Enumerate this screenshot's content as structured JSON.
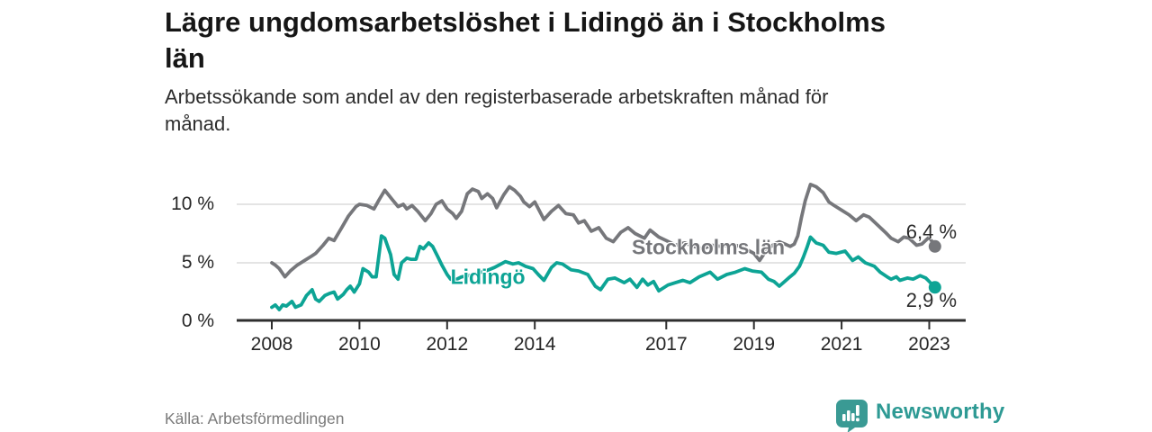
{
  "header": {
    "title_line1": "Lägre ungdomsarbetslöshet i Lidingö än i Stockholms",
    "title_line2": "län",
    "subtitle_line1": "Arbetssökande som andel av den registerbaserade arbetskraften månad för",
    "subtitle_line2": "månad."
  },
  "footer": {
    "source": "Källa: Arbetsförmedlingen",
    "brand": "Newsworthy",
    "brand_color": "#2e9a94"
  },
  "chart_data": {
    "type": "line",
    "title": "Lägre ungdomsarbetslöshet i Lidingö än i Stockholms län",
    "subtitle": "Arbetssökande som andel av den registerbaserade arbetskraften månad för månad.",
    "xlabel": "",
    "ylabel": "",
    "xlim": [
      2008,
      2023.5
    ],
    "ylim": [
      0,
      12
    ],
    "grid": "horizontal",
    "legend_position": "inline-labels",
    "x_tick_labels": [
      "2008",
      "2010",
      "2012",
      "2014",
      "2017",
      "2019",
      "2021",
      "2023"
    ],
    "x_tick_values": [
      2008,
      2010,
      2012,
      2014,
      2017,
      2019,
      2021,
      2023
    ],
    "y_tick_labels": [
      "0 %",
      "5 %",
      "10 %"
    ],
    "y_tick_values": [
      0,
      5,
      10
    ],
    "series": [
      {
        "name": "Stockholms län",
        "color": "#76777b",
        "end_label": "6,4 %",
        "end_value": 6.4,
        "points": [
          [
            2008.0,
            5.0
          ],
          [
            2008.08,
            4.8
          ],
          [
            2008.17,
            4.5
          ],
          [
            2008.3,
            3.8
          ],
          [
            2008.42,
            4.3
          ],
          [
            2008.58,
            4.8
          ],
          [
            2008.75,
            5.2
          ],
          [
            2008.92,
            5.6
          ],
          [
            2009.0,
            5.8
          ],
          [
            2009.17,
            6.5
          ],
          [
            2009.3,
            7.1
          ],
          [
            2009.42,
            6.9
          ],
          [
            2009.58,
            7.9
          ],
          [
            2009.75,
            9.0
          ],
          [
            2009.92,
            9.8
          ],
          [
            2010.0,
            10.0
          ],
          [
            2010.17,
            9.9
          ],
          [
            2010.33,
            9.6
          ],
          [
            2010.45,
            10.4
          ],
          [
            2010.58,
            11.2
          ],
          [
            2010.75,
            10.4
          ],
          [
            2010.88,
            9.8
          ],
          [
            2011.0,
            10.0
          ],
          [
            2011.08,
            9.6
          ],
          [
            2011.2,
            9.9
          ],
          [
            2011.33,
            9.4
          ],
          [
            2011.5,
            8.6
          ],
          [
            2011.63,
            9.2
          ],
          [
            2011.75,
            10.0
          ],
          [
            2011.88,
            10.3
          ],
          [
            2012.0,
            9.6
          ],
          [
            2012.13,
            9.2
          ],
          [
            2012.21,
            8.8
          ],
          [
            2012.33,
            9.4
          ],
          [
            2012.46,
            10.9
          ],
          [
            2012.58,
            11.3
          ],
          [
            2012.71,
            11.1
          ],
          [
            2012.79,
            10.5
          ],
          [
            2012.92,
            10.9
          ],
          [
            2013.04,
            10.5
          ],
          [
            2013.13,
            9.7
          ],
          [
            2013.29,
            10.8
          ],
          [
            2013.42,
            11.5
          ],
          [
            2013.54,
            11.2
          ],
          [
            2013.67,
            10.7
          ],
          [
            2013.75,
            10.2
          ],
          [
            2013.88,
            9.8
          ],
          [
            2014.0,
            10.2
          ],
          [
            2014.21,
            8.7
          ],
          [
            2014.38,
            9.4
          ],
          [
            2014.54,
            9.9
          ],
          [
            2014.71,
            9.2
          ],
          [
            2014.88,
            9.1
          ],
          [
            2015.0,
            8.4
          ],
          [
            2015.13,
            8.6
          ],
          [
            2015.29,
            7.7
          ],
          [
            2015.46,
            8.0
          ],
          [
            2015.63,
            7.1
          ],
          [
            2015.79,
            6.8
          ],
          [
            2015.96,
            7.6
          ],
          [
            2016.13,
            8.0
          ],
          [
            2016.29,
            7.5
          ],
          [
            2016.5,
            7.1
          ],
          [
            2016.63,
            7.8
          ],
          [
            2016.83,
            7.2
          ],
          [
            2017.0,
            6.9
          ],
          [
            2017.21,
            6.5
          ],
          [
            2017.42,
            6.7
          ],
          [
            2017.63,
            6.4
          ],
          [
            2017.83,
            6.2
          ],
          [
            2018.04,
            6.5
          ],
          [
            2018.25,
            6.4
          ],
          [
            2018.5,
            6.6
          ],
          [
            2018.75,
            6.3
          ],
          [
            2019.0,
            5.8
          ],
          [
            2019.13,
            5.2
          ],
          [
            2019.29,
            6.1
          ],
          [
            2019.46,
            6.6
          ],
          [
            2019.58,
            6.8
          ],
          [
            2019.71,
            6.6
          ],
          [
            2019.83,
            6.4
          ],
          [
            2019.92,
            6.6
          ],
          [
            2020.0,
            7.3
          ],
          [
            2020.08,
            8.8
          ],
          [
            2020.17,
            10.3
          ],
          [
            2020.29,
            11.7
          ],
          [
            2020.42,
            11.5
          ],
          [
            2020.58,
            11.0
          ],
          [
            2020.71,
            10.2
          ],
          [
            2020.83,
            9.9
          ],
          [
            2021.0,
            9.5
          ],
          [
            2021.17,
            9.1
          ],
          [
            2021.33,
            8.6
          ],
          [
            2021.5,
            9.1
          ],
          [
            2021.63,
            8.9
          ],
          [
            2021.83,
            8.2
          ],
          [
            2022.0,
            7.6
          ],
          [
            2022.13,
            7.1
          ],
          [
            2022.29,
            6.8
          ],
          [
            2022.42,
            7.2
          ],
          [
            2022.54,
            7.1
          ],
          [
            2022.71,
            6.5
          ],
          [
            2022.83,
            6.6
          ],
          [
            2023.0,
            7.2
          ],
          [
            2023.13,
            6.4
          ]
        ]
      },
      {
        "name": "Lidingö",
        "color": "#0da495",
        "end_label": "2,9 %",
        "end_value": 2.9,
        "points": [
          [
            2008.0,
            1.2
          ],
          [
            2008.08,
            1.4
          ],
          [
            2008.17,
            1.0
          ],
          [
            2008.25,
            1.4
          ],
          [
            2008.33,
            1.3
          ],
          [
            2008.46,
            1.7
          ],
          [
            2008.54,
            1.2
          ],
          [
            2008.67,
            1.4
          ],
          [
            2008.79,
            2.2
          ],
          [
            2008.92,
            2.7
          ],
          [
            2009.0,
            1.9
          ],
          [
            2009.08,
            1.7
          ],
          [
            2009.21,
            2.2
          ],
          [
            2009.33,
            2.4
          ],
          [
            2009.42,
            2.5
          ],
          [
            2009.5,
            1.9
          ],
          [
            2009.63,
            2.3
          ],
          [
            2009.71,
            2.7
          ],
          [
            2009.79,
            3.0
          ],
          [
            2009.88,
            2.5
          ],
          [
            2010.0,
            3.2
          ],
          [
            2010.08,
            4.5
          ],
          [
            2010.21,
            4.2
          ],
          [
            2010.29,
            3.8
          ],
          [
            2010.38,
            3.8
          ],
          [
            2010.46,
            6.1
          ],
          [
            2010.5,
            7.3
          ],
          [
            2010.58,
            7.1
          ],
          [
            2010.71,
            5.7
          ],
          [
            2010.79,
            4.0
          ],
          [
            2010.88,
            3.6
          ],
          [
            2010.96,
            5.0
          ],
          [
            2011.08,
            5.4
          ],
          [
            2011.17,
            5.3
          ],
          [
            2011.29,
            5.3
          ],
          [
            2011.38,
            6.4
          ],
          [
            2011.46,
            6.2
          ],
          [
            2011.58,
            6.7
          ],
          [
            2011.67,
            6.4
          ],
          [
            2011.79,
            5.5
          ],
          [
            2011.88,
            4.8
          ],
          [
            2012.0,
            4.0
          ],
          [
            2012.08,
            3.6
          ],
          [
            2012.17,
            3.5
          ],
          [
            2012.33,
            3.8
          ],
          [
            2012.5,
            3.9
          ],
          [
            2012.67,
            4.1
          ],
          [
            2012.88,
            4.3
          ],
          [
            2013.08,
            4.6
          ],
          [
            2013.33,
            5.1
          ],
          [
            2013.5,
            4.9
          ],
          [
            2013.63,
            5.0
          ],
          [
            2013.79,
            4.7
          ],
          [
            2013.96,
            4.5
          ],
          [
            2014.08,
            4.0
          ],
          [
            2014.21,
            3.5
          ],
          [
            2014.38,
            4.6
          ],
          [
            2014.5,
            5.0
          ],
          [
            2014.63,
            4.9
          ],
          [
            2014.83,
            4.4
          ],
          [
            2015.0,
            4.3
          ],
          [
            2015.21,
            4.0
          ],
          [
            2015.38,
            3.0
          ],
          [
            2015.5,
            2.7
          ],
          [
            2015.67,
            3.6
          ],
          [
            2015.83,
            3.7
          ],
          [
            2016.04,
            3.3
          ],
          [
            2016.17,
            3.6
          ],
          [
            2016.33,
            2.9
          ],
          [
            2016.46,
            3.6
          ],
          [
            2016.58,
            3.1
          ],
          [
            2016.71,
            3.4
          ],
          [
            2016.83,
            2.6
          ],
          [
            2017.04,
            3.1
          ],
          [
            2017.21,
            3.3
          ],
          [
            2017.38,
            3.5
          ],
          [
            2017.54,
            3.3
          ],
          [
            2017.75,
            3.8
          ],
          [
            2018.0,
            4.2
          ],
          [
            2018.17,
            3.6
          ],
          [
            2018.38,
            4.0
          ],
          [
            2018.58,
            4.2
          ],
          [
            2018.79,
            4.5
          ],
          [
            2018.96,
            4.3
          ],
          [
            2019.17,
            4.2
          ],
          [
            2019.33,
            3.6
          ],
          [
            2019.46,
            3.4
          ],
          [
            2019.58,
            3.0
          ],
          [
            2019.79,
            3.7
          ],
          [
            2019.92,
            4.1
          ],
          [
            2020.04,
            4.7
          ],
          [
            2020.13,
            5.5
          ],
          [
            2020.21,
            6.3
          ],
          [
            2020.29,
            7.2
          ],
          [
            2020.42,
            6.7
          ],
          [
            2020.58,
            6.5
          ],
          [
            2020.71,
            5.9
          ],
          [
            2020.88,
            5.8
          ],
          [
            2021.08,
            6.0
          ],
          [
            2021.25,
            5.2
          ],
          [
            2021.38,
            5.5
          ],
          [
            2021.54,
            5.0
          ],
          [
            2021.75,
            4.7
          ],
          [
            2021.88,
            4.2
          ],
          [
            2022.04,
            3.8
          ],
          [
            2022.13,
            3.6
          ],
          [
            2022.25,
            3.8
          ],
          [
            2022.33,
            3.5
          ],
          [
            2022.5,
            3.7
          ],
          [
            2022.63,
            3.6
          ],
          [
            2022.79,
            3.9
          ],
          [
            2022.92,
            3.7
          ],
          [
            2023.0,
            3.4
          ],
          [
            2023.13,
            2.9
          ]
        ]
      }
    ],
    "series_annotations": [
      {
        "text": "Stockholms län",
        "series": "Stockholms län",
        "x": 2017.96,
        "y": 6.31
      },
      {
        "text": "Lidingö",
        "series": "Lidingö",
        "x": 2012.93,
        "y": 3.77
      }
    ],
    "value_annotations": [
      {
        "text": "6,4 %",
        "series": "Stockholms län",
        "x": 2023.05,
        "y": 7.62
      },
      {
        "text": "2,9 %",
        "series": "Lidingö",
        "x": 2023.05,
        "y": 1.77
      }
    ],
    "axis_color": "#2e2e2e",
    "gridline_color": "#dcdcdc"
  }
}
